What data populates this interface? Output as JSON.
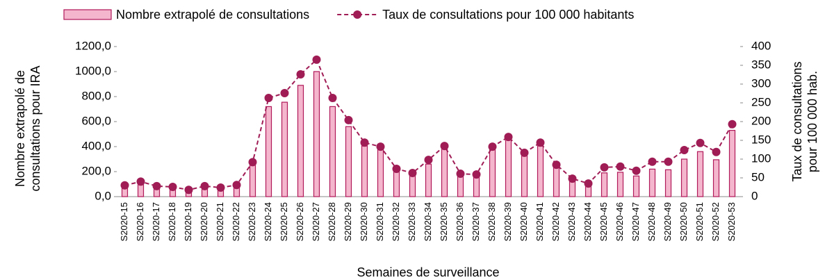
{
  "chart_data": {
    "type": "combo",
    "xlabel": "Semaines de surveillance",
    "ylabel": [
      "Nombre extrapolé de",
      "consultations pour IRA"
    ],
    "y2label": [
      "Taux de consultations",
      "pour 100 000 hab."
    ],
    "categories": [
      "S2020-15",
      "S2020-16",
      "S2020-17",
      "S2020-18",
      "S2020-19",
      "S2020-20",
      "S2020-21",
      "S2020-22",
      "S2020-23",
      "S2020-24",
      "S2020-25",
      "S2020-26",
      "S2020-27",
      "S2020-28",
      "S2020-29",
      "S2020-30",
      "S2020-31",
      "S2020-32",
      "S2020-33",
      "S2020-34",
      "S2020-35",
      "S2020-36",
      "S2020-37",
      "S2020-38",
      "S2020-39",
      "S2020-40",
      "S2020-41",
      "S2020-42",
      "S2020-43",
      "S2020-44",
      "S2020-45",
      "S2020-46",
      "S2020-47",
      "S2020-48",
      "S2020-49",
      "S2020-50",
      "S2020-51",
      "S2020-52",
      "S2020-53"
    ],
    "series": [
      {
        "name": "Nombre extrapolé de consultations",
        "type": "bar",
        "color": "#f4b6cc",
        "axis": "y",
        "values": [
          80,
          100,
          60,
          60,
          40,
          60,
          50,
          80,
          280,
          720,
          755,
          890,
          1000,
          720,
          560,
          405,
          380,
          215,
          180,
          260,
          390,
          180,
          165,
          375,
          455,
          340,
          405,
          235,
          120,
          90,
          190,
          195,
          165,
          220,
          215,
          300,
          360,
          295,
          530
        ]
      },
      {
        "name": "Taux de consultations pour 100 000 habitants",
        "type": "line",
        "color": "#a01c55",
        "axis": "y2",
        "values": [
          30,
          40,
          28,
          26,
          18,
          28,
          24,
          31,
          92,
          263,
          276,
          326,
          365,
          263,
          204,
          144,
          133,
          74,
          63,
          98,
          135,
          61,
          59,
          133,
          159,
          117,
          144,
          85,
          48,
          35,
          78,
          80,
          69,
          93,
          93,
          124,
          143,
          119,
          193
        ]
      }
    ],
    "ylim": [
      0,
      1200
    ],
    "yticks": [
      {
        "value": 0,
        "label": "0,0"
      },
      {
        "value": 200,
        "label": "200,0"
      },
      {
        "value": 400,
        "label": "400,0"
      },
      {
        "value": 600,
        "label": "600,0"
      },
      {
        "value": 800,
        "label": "800,0"
      },
      {
        "value": 1000,
        "label": "1000,0"
      },
      {
        "value": 1200,
        "label": "1200,0"
      }
    ],
    "y2lim": [
      0,
      400
    ],
    "y2ticks": [
      0,
      50,
      100,
      150,
      200,
      250,
      300,
      350,
      400
    ]
  }
}
